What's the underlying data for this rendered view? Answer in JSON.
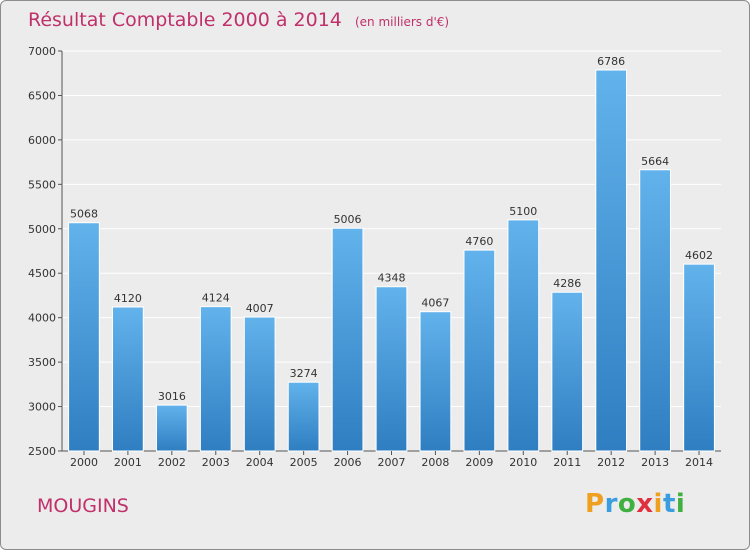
{
  "header": {
    "title": "Résultat Comptable 2000 à 2014",
    "subtitle": "(en milliers d'€)"
  },
  "footer": {
    "commune": "MOUGINS",
    "logo_letters": [
      "P",
      "r",
      "o",
      "x",
      "i",
      "t",
      "i"
    ],
    "logo_colors": [
      "#f0a020",
      "#3a9de0",
      "#40b040",
      "#e03040",
      "#f0a020",
      "#3a9de0",
      "#40b040"
    ]
  },
  "colors": {
    "title": "#c0306a",
    "bar_top": "#62b2ec",
    "bar_bottom": "#2f7ec1",
    "background": "#ececec"
  },
  "chart_data": {
    "type": "bar",
    "title": "Résultat Comptable 2000 à 2014",
    "categories": [
      "2000",
      "2001",
      "2002",
      "2003",
      "2004",
      "2005",
      "2006",
      "2007",
      "2008",
      "2009",
      "2010",
      "2011",
      "2012",
      "2013",
      "2014"
    ],
    "values": [
      5068,
      4120,
      3016,
      4124,
      4007,
      3274,
      5006,
      4348,
      4067,
      4760,
      5100,
      4286,
      6786,
      5664,
      4602
    ],
    "ylim": [
      2500,
      7000
    ],
    "yticks": [
      2500,
      3000,
      3500,
      4000,
      4500,
      5000,
      5500,
      6000,
      6500,
      7000
    ],
    "grid": true,
    "data_labels": true
  }
}
